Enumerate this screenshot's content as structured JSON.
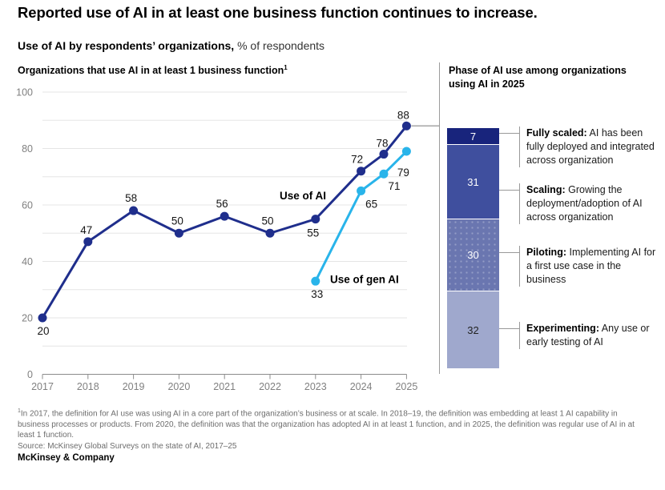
{
  "title": "Reported use of AI in at least one business function continues to increase.",
  "subtitle": {
    "bold": "Use of AI by respondents’ organizations,",
    "regular": " % of respondents"
  },
  "left_panel": {
    "title": "Organizations that use AI in at least 1 business function",
    "title_superscript": "1"
  },
  "right_panel": {
    "title": "Phase of AI use among organizations using AI in 2025"
  },
  "chart_data": [
    {
      "type": "line",
      "title": "Organizations that use AI in at least 1 business function",
      "x": [
        2017,
        2018,
        2019,
        2020,
        2021,
        2022,
        2023,
        2024,
        2025
      ],
      "ylim": [
        0,
        100
      ],
      "yticks": [
        0,
        20,
        40,
        60,
        80,
        100
      ],
      "grid": "horizontal every 10, labels every 20",
      "legend_position": "inline annotations",
      "series": [
        {
          "name": "Use of AI",
          "color": "#1f2e8c",
          "x": [
            2017,
            2018,
            2019,
            2020,
            2021,
            2022,
            2023,
            2024,
            2024.5,
            2025
          ],
          "values": [
            20,
            47,
            58,
            50,
            56,
            50,
            55,
            72,
            78,
            88
          ]
        },
        {
          "name": "Use of gen AI",
          "color": "#29b4ea",
          "x": [
            2023,
            2024,
            2024.5,
            2025
          ],
          "values": [
            33,
            65,
            71,
            79
          ]
        }
      ]
    },
    {
      "type": "stacked-bar",
      "title": "Phase of AI use among organizations using AI in 2025",
      "total": 100,
      "segments": [
        {
          "value": 7,
          "label_bold": "Fully scaled:",
          "desc": "AI has been fully deployed and integrated across organization",
          "color": "#18247c",
          "text_color": "#ffffff"
        },
        {
          "value": 31,
          "label_bold": "Scaling:",
          "desc": "Growing the deployment/adoption of AI across organization",
          "color": "#3f4f9e",
          "text_color": "#ffffff"
        },
        {
          "value": 30,
          "label_bold": "Piloting:",
          "desc": "Implementing AI for a first use case in the business",
          "color": "#6a76b0",
          "text_color": "#ffffff",
          "pattern": "dots"
        },
        {
          "value": 32,
          "label_bold": "Experimenting:",
          "desc": "Any use or early testing of AI",
          "color": "#9fa8cd",
          "text_color": "#222222"
        }
      ]
    }
  ],
  "footnote": {
    "marker": "1",
    "text": "In 2017, the definition for AI use was using AI in a core part of the organization’s business or at scale. In 2018–19, the definition was embedding at least 1 AI capability in business processes or products. From 2020, the definition was that the organization has adopted AI in at least 1 function, and in 2025, the definition was regular use of AI in at least 1 function.",
    "source": "Source: McKinsey Global Surveys on the state of AI, 2017–25"
  },
  "footer": "McKinsey & Company",
  "colors": {
    "accent_dark_blue": "#1f2e8c",
    "accent_cyan": "#29b4ea",
    "grid": "#e5e5e5",
    "axis": "#8c8c8c",
    "axis_label": "#808080",
    "connector_gray": "#a6a6a6",
    "data_label": "#161616"
  }
}
